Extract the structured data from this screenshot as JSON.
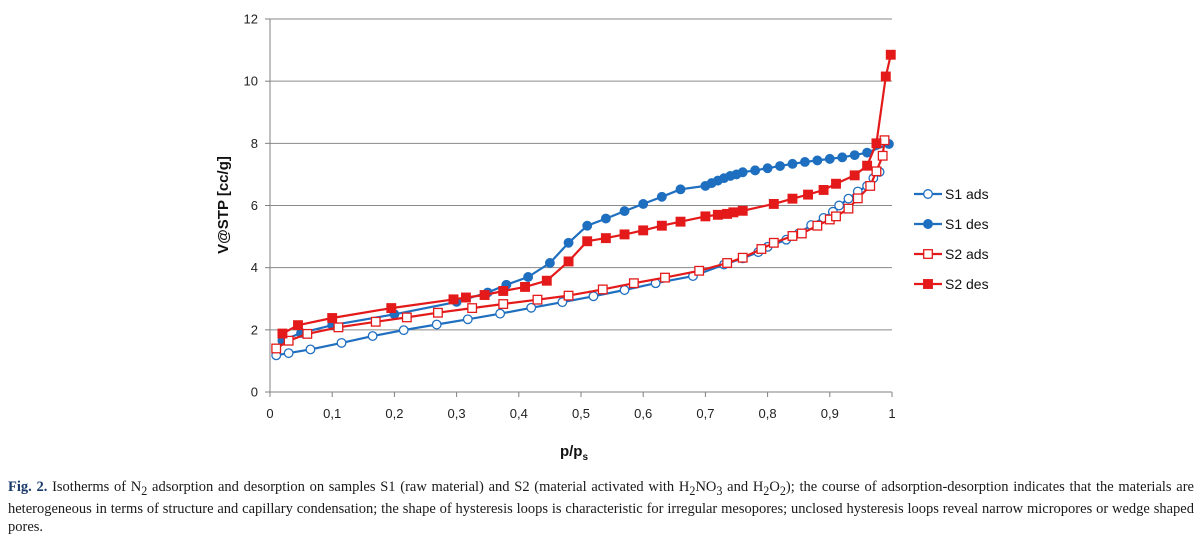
{
  "chart_data": {
    "type": "line",
    "xlabel": "p/p",
    "xlabel_sub": "s",
    "ylabel": "V@STP [cc/g]",
    "xlim": [
      0,
      1
    ],
    "ylim": [
      0,
      12
    ],
    "x_ticks": [
      "0",
      "0,1",
      "0,2",
      "0,3",
      "0,4",
      "0,5",
      "0,6",
      "0,7",
      "0,8",
      "0,9",
      "1"
    ],
    "y_ticks": [
      "0",
      "2",
      "4",
      "6",
      "8",
      "10",
      "12"
    ],
    "grid": "horizontal",
    "legend_position": "right",
    "series": [
      {
        "name": "S1 ads",
        "color": "#1f6fc0",
        "marker": "circle",
        "filled": false,
        "points": [
          [
            0.01,
            1.18
          ],
          [
            0.03,
            1.25
          ],
          [
            0.065,
            1.37
          ],
          [
            0.115,
            1.58
          ],
          [
            0.165,
            1.8
          ],
          [
            0.215,
            1.99
          ],
          [
            0.268,
            2.17
          ],
          [
            0.318,
            2.34
          ],
          [
            0.37,
            2.52
          ],
          [
            0.42,
            2.71
          ],
          [
            0.47,
            2.89
          ],
          [
            0.52,
            3.08
          ],
          [
            0.57,
            3.28
          ],
          [
            0.62,
            3.5
          ],
          [
            0.68,
            3.73
          ],
          [
            0.73,
            4.1
          ],
          [
            0.76,
            4.3
          ],
          [
            0.785,
            4.5
          ],
          [
            0.8,
            4.67
          ],
          [
            0.83,
            4.9
          ],
          [
            0.85,
            5.1
          ],
          [
            0.87,
            5.37
          ],
          [
            0.89,
            5.6
          ],
          [
            0.905,
            5.8
          ],
          [
            0.915,
            6.0
          ],
          [
            0.93,
            6.22
          ],
          [
            0.945,
            6.45
          ],
          [
            0.96,
            6.63
          ],
          [
            0.97,
            6.88
          ],
          [
            0.98,
            7.08
          ]
        ]
      },
      {
        "name": "S1 des",
        "color": "#1f6fc0",
        "marker": "circle",
        "filled": true,
        "points": [
          [
            0.995,
            7.98
          ],
          [
            0.96,
            7.7
          ],
          [
            0.94,
            7.62
          ],
          [
            0.92,
            7.55
          ],
          [
            0.9,
            7.5
          ],
          [
            0.88,
            7.45
          ],
          [
            0.86,
            7.4
          ],
          [
            0.84,
            7.34
          ],
          [
            0.82,
            7.27
          ],
          [
            0.8,
            7.2
          ],
          [
            0.78,
            7.13
          ],
          [
            0.76,
            7.07
          ],
          [
            0.75,
            7.0
          ],
          [
            0.74,
            6.95
          ],
          [
            0.73,
            6.88
          ],
          [
            0.72,
            6.8
          ],
          [
            0.71,
            6.72
          ],
          [
            0.7,
            6.63
          ],
          [
            0.66,
            6.52
          ],
          [
            0.63,
            6.28
          ],
          [
            0.6,
            6.05
          ],
          [
            0.57,
            5.82
          ],
          [
            0.54,
            5.58
          ],
          [
            0.51,
            5.35
          ],
          [
            0.48,
            4.8
          ],
          [
            0.45,
            4.15
          ],
          [
            0.415,
            3.7
          ],
          [
            0.38,
            3.45
          ],
          [
            0.35,
            3.2
          ],
          [
            0.3,
            2.9
          ],
          [
            0.2,
            2.5
          ],
          [
            0.1,
            2.15
          ],
          [
            0.05,
            1.9
          ],
          [
            0.02,
            1.65
          ]
        ]
      },
      {
        "name": "S2 ads",
        "color": "#e41a1a",
        "marker": "square",
        "filled": false,
        "points": [
          [
            0.01,
            1.4
          ],
          [
            0.03,
            1.65
          ],
          [
            0.06,
            1.87
          ],
          [
            0.11,
            2.08
          ],
          [
            0.17,
            2.26
          ],
          [
            0.22,
            2.4
          ],
          [
            0.27,
            2.55
          ],
          [
            0.325,
            2.7
          ],
          [
            0.375,
            2.83
          ],
          [
            0.43,
            2.97
          ],
          [
            0.48,
            3.1
          ],
          [
            0.535,
            3.3
          ],
          [
            0.585,
            3.5
          ],
          [
            0.635,
            3.68
          ],
          [
            0.69,
            3.9
          ],
          [
            0.735,
            4.15
          ],
          [
            0.76,
            4.32
          ],
          [
            0.79,
            4.6
          ],
          [
            0.81,
            4.8
          ],
          [
            0.84,
            5.02
          ],
          [
            0.855,
            5.1
          ],
          [
            0.88,
            5.35
          ],
          [
            0.9,
            5.55
          ],
          [
            0.91,
            5.65
          ],
          [
            0.93,
            5.9
          ],
          [
            0.945,
            6.23
          ],
          [
            0.965,
            6.63
          ],
          [
            0.975,
            7.1
          ],
          [
            0.985,
            7.6
          ],
          [
            0.988,
            8.1
          ]
        ]
      },
      {
        "name": "S2 des",
        "color": "#e41a1a",
        "marker": "square",
        "filled": true,
        "points": [
          [
            0.998,
            10.85
          ],
          [
            0.99,
            10.15
          ],
          [
            0.975,
            8.0
          ],
          [
            0.96,
            7.28
          ],
          [
            0.94,
            6.97
          ],
          [
            0.91,
            6.7
          ],
          [
            0.89,
            6.5
          ],
          [
            0.865,
            6.35
          ],
          [
            0.84,
            6.22
          ],
          [
            0.81,
            6.05
          ],
          [
            0.76,
            5.83
          ],
          [
            0.745,
            5.78
          ],
          [
            0.735,
            5.73
          ],
          [
            0.72,
            5.7
          ],
          [
            0.7,
            5.65
          ],
          [
            0.66,
            5.48
          ],
          [
            0.63,
            5.35
          ],
          [
            0.6,
            5.2
          ],
          [
            0.57,
            5.07
          ],
          [
            0.54,
            4.95
          ],
          [
            0.51,
            4.85
          ],
          [
            0.48,
            4.2
          ],
          [
            0.445,
            3.58
          ],
          [
            0.41,
            3.38
          ],
          [
            0.375,
            3.25
          ],
          [
            0.345,
            3.12
          ],
          [
            0.315,
            3.04
          ],
          [
            0.295,
            2.98
          ],
          [
            0.195,
            2.7
          ],
          [
            0.1,
            2.38
          ],
          [
            0.045,
            2.15
          ],
          [
            0.02,
            1.88
          ]
        ]
      }
    ]
  },
  "caption": {
    "label": "Fig. 2.",
    "text_1": " Isotherms of N",
    "sub_1": "2",
    "text_2": " adsorption and desorption on samples S1 (raw material) and S2 (material activated with H",
    "sub_2": "2",
    "text_3": "NO",
    "sub_3": "3",
    "text_4": " and H",
    "sub_4": "2",
    "text_5": "O",
    "sub_5": "2",
    "text_6": "); the course of adsorption-desorption indicates that the materials are heterogeneous in terms of structure and capillary condensation; the shape of hysteresis loops is characteristic for irregular mesopores; unclosed hysteresis loops reveal narrow micropores or wedge shaped pores."
  }
}
